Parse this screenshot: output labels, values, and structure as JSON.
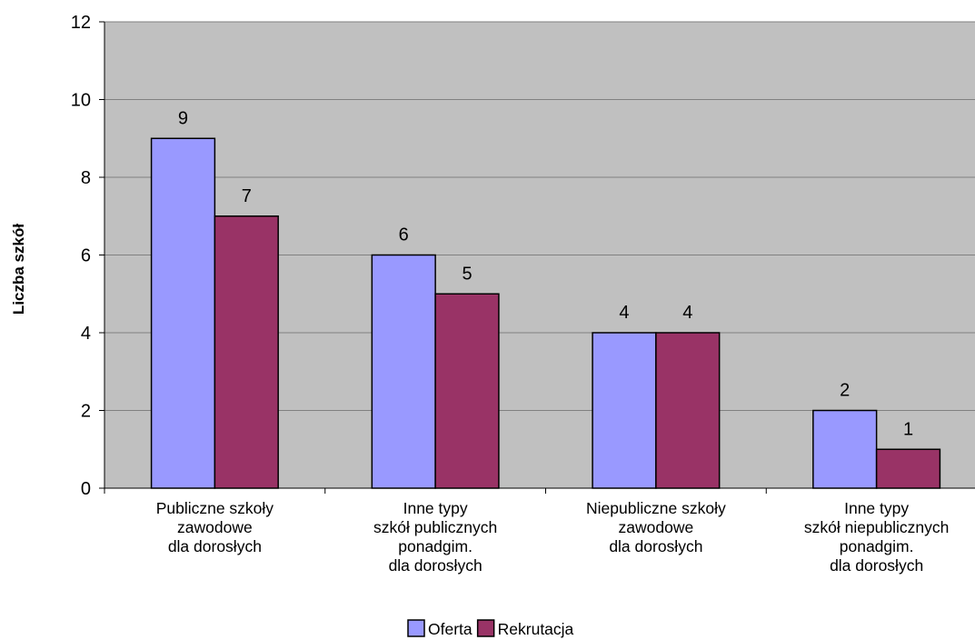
{
  "chart_data": {
    "type": "bar",
    "categories": [
      [
        "Publiczne szkoły",
        "zawodowe",
        "dla dorosłych"
      ],
      [
        "Inne typy",
        "szkół publicznych",
        "ponadgim.",
        "dla dorosłych"
      ],
      [
        "Niepubliczne szkoły",
        "zawodowe",
        "dla dorosłych"
      ],
      [
        "Inne typy",
        "szkół niepublicznych",
        "ponadgim.",
        "dla dorosłych"
      ]
    ],
    "series": [
      {
        "name": "Oferta",
        "values": [
          9,
          6,
          4,
          2
        ],
        "color": "#9999ff"
      },
      {
        "name": "Rekrutacja",
        "values": [
          7,
          5,
          4,
          1
        ],
        "color": "#993366"
      }
    ],
    "ylabel": "Liczba szkół",
    "xlabel": "",
    "ylim": [
      0,
      12
    ],
    "yticks": [
      "0",
      "2",
      "4",
      "6",
      "8",
      "10",
      "12"
    ],
    "plot_background": "#c0c0c0",
    "gridlines": true,
    "legend_position": "bottom"
  }
}
